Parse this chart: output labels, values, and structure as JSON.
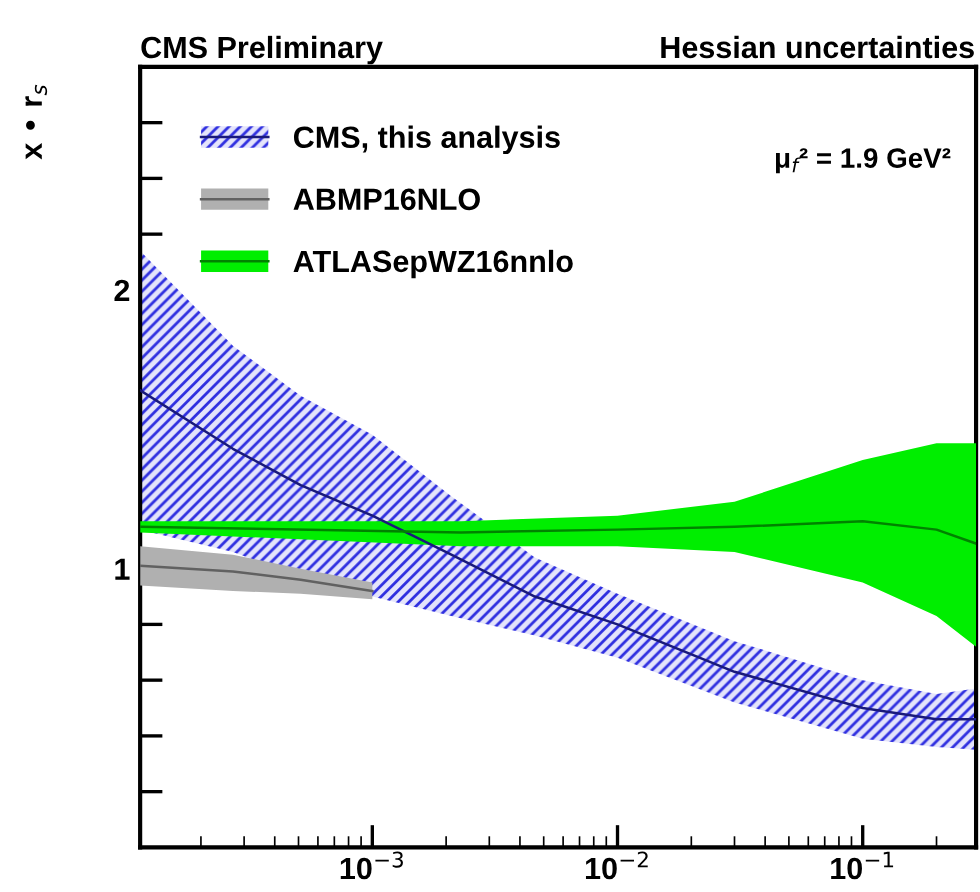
{
  "chart_data": {
    "type": "line",
    "title": "CMS Preliminary",
    "subtitle": "Hessian uncertainties",
    "ylabel": "x • r$_{s}$",
    "annotations": [
      "μ$_{f}$² = 1.9 GeV²"
    ],
    "log": "x",
    "xlim": [
      0.000113,
      0.29
    ],
    "ylim": [
      0,
      2.8
    ],
    "xticks": [
      {
        "value": 0.001,
        "label": "10$^{−3}$"
      },
      {
        "value": 0.01,
        "label": "10$^{−2}$"
      },
      {
        "value": 0.1,
        "label": "10$^{−1}$"
      }
    ],
    "yticks": [
      {
        "value": 0.2,
        "label": null
      },
      {
        "value": 0.4,
        "label": null
      },
      {
        "value": 0.6,
        "label": null
      },
      {
        "value": 0.8,
        "label": null
      },
      1,
      {
        "value": 1.2,
        "label": null
      },
      {
        "value": 1.4,
        "label": null
      },
      {
        "value": 1.6,
        "label": null
      },
      {
        "value": 1.8,
        "label": null
      },
      2,
      {
        "value": 2.2,
        "label": null
      },
      {
        "value": 2.4,
        "label": null
      },
      {
        "value": 2.6,
        "label": null
      }
    ],
    "legend": "top left",
    "grid": false,
    "series": [
      {
        "name": "CMS, this analysis",
        "color": "#1a1a7b",
        "x": [
          0.000113,
          0.00027,
          0.00051,
          0.001,
          0.0021,
          0.0046,
          0.01,
          0.03,
          0.1,
          0.2,
          0.29
        ],
        "values": [
          1.64,
          1.43,
          1.3,
          1.19,
          1.05,
          0.9,
          0.8,
          0.63,
          0.5,
          0.46,
          0.46
        ],
        "lower": [
          1.14,
          1.06,
          0.97,
          0.9,
          0.83,
          0.76,
          0.68,
          0.52,
          0.39,
          0.36,
          0.35
        ],
        "upper": [
          2.14,
          1.8,
          1.62,
          1.48,
          1.26,
          1.04,
          0.91,
          0.74,
          0.6,
          0.55,
          0.57
        ]
      },
      {
        "name": "ABMP16NLO",
        "color": "#616161",
        "x": [
          0.000113,
          0.00027,
          0.00051,
          0.001
        ],
        "values": [
          1.01,
          0.99,
          0.96,
          0.92
        ],
        "lower": [
          0.94,
          0.92,
          0.91,
          0.89
        ],
        "upper": [
          1.08,
          1.05,
          1.0,
          0.95
        ]
      },
      {
        "name": "ATLASepWZ16nnlo",
        "color": "#008300",
        "x": [
          0.000113,
          0.0023,
          0.01,
          0.03,
          0.1,
          0.2,
          0.29
        ],
        "values": [
          1.15,
          1.13,
          1.14,
          1.15,
          1.17,
          1.14,
          1.09
        ],
        "lower": [
          1.13,
          1.08,
          1.08,
          1.06,
          0.95,
          0.83,
          0.72
        ],
        "upper": [
          1.17,
          1.17,
          1.19,
          1.24,
          1.39,
          1.45,
          1.45
        ]
      }
    ]
  }
}
